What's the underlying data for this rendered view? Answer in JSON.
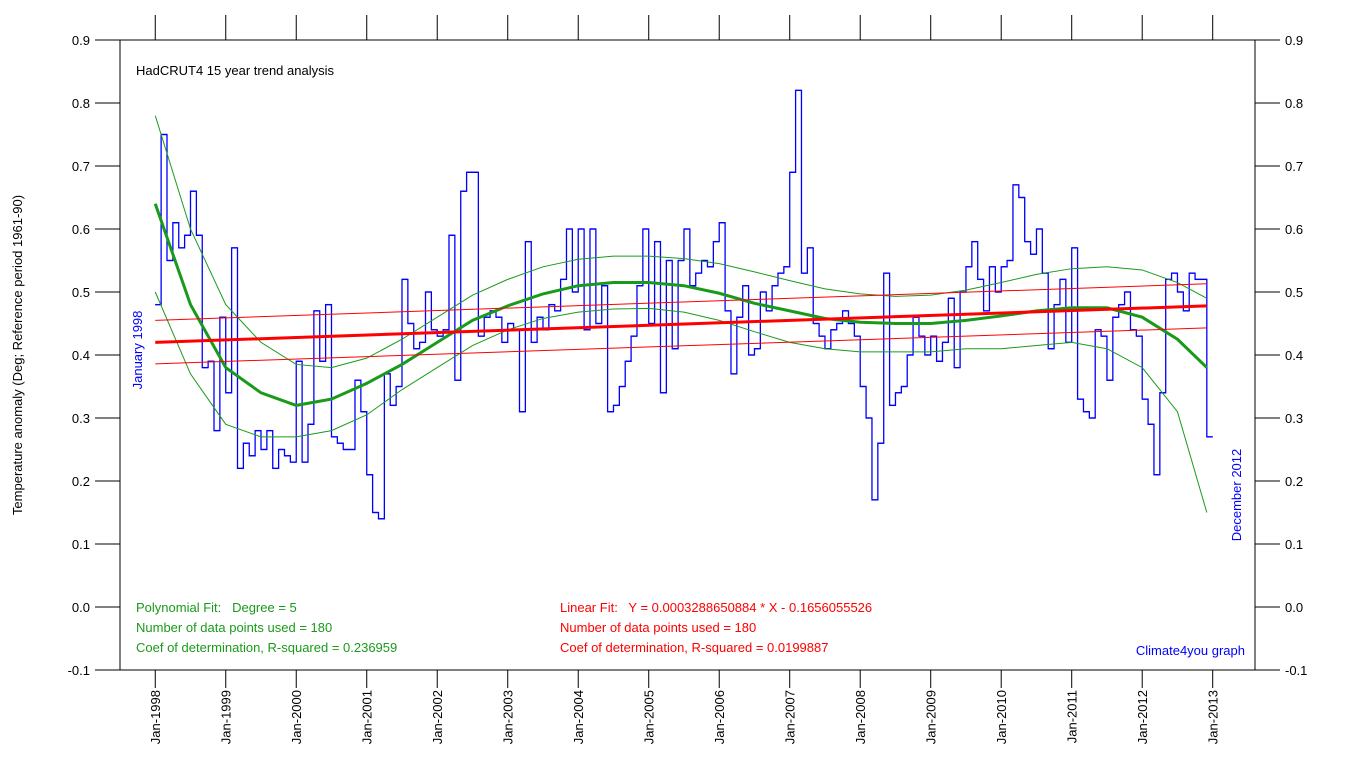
{
  "chart_data": {
    "type": "line",
    "title": "HadCRUT4 15 year trend analysis",
    "y_label": "Temperature anomaly (Deg; Reference period 1961-90)",
    "annotations": {
      "start": "January 1998",
      "end": "December 2012",
      "poly": [
        "Polynomial Fit:   Degree = 5",
        "Number of data points used = 180",
        "Coef of determination, R-squared = 0.236959"
      ],
      "linear": [
        "Linear Fit:   Y = 0.0003288650884 * X - 0.1656055526",
        "Number of data points used = 180",
        "Coef of determination, R-squared = 0.0199887"
      ],
      "credit": "Climate4you graph"
    },
    "xlim": [
      1997.5,
      2013.6
    ],
    "xticks": [
      {
        "value": 1998,
        "label": "Jan-1998"
      },
      {
        "value": 1999,
        "label": "Jan-1999"
      },
      {
        "value": 2000,
        "label": "Jan-2000"
      },
      {
        "value": 2001,
        "label": "Jan-2001"
      },
      {
        "value": 2002,
        "label": "Jan-2002"
      },
      {
        "value": 2003,
        "label": "Jan-2003"
      },
      {
        "value": 2004,
        "label": "Jan-2004"
      },
      {
        "value": 2005,
        "label": "Jan-2005"
      },
      {
        "value": 2006,
        "label": "Jan-2006"
      },
      {
        "value": 2007,
        "label": "Jan-2007"
      },
      {
        "value": 2008,
        "label": "Jan-2008"
      },
      {
        "value": 2009,
        "label": "Jan-2009"
      },
      {
        "value": 2010,
        "label": "Jan-2010"
      },
      {
        "value": 2011,
        "label": "Jan-2011"
      },
      {
        "value": 2012,
        "label": "Jan-2012"
      },
      {
        "value": 2013,
        "label": "Jan-2013"
      }
    ],
    "ylim": [
      -0.1,
      0.9
    ],
    "yticks": [
      -0.1,
      {
        "value": 0,
        "label": "0.0"
      },
      0.1,
      0.2,
      0.3,
      0.4,
      0.5,
      0.6,
      0.7,
      0.8,
      0.9
    ],
    "series": [
      {
        "color": "#0000ff",
        "style": "step",
        "width": 1.3,
        "x": [
          "1998-01",
          "1998-02",
          "1998-03",
          "1998-04",
          "1998-05",
          "1998-06",
          "1998-07",
          "1998-08",
          "1998-09",
          "1998-10",
          "1998-11",
          "1998-12",
          "1999-01",
          "1999-02",
          "1999-03",
          "1999-04",
          "1999-05",
          "1999-06",
          "1999-07",
          "1999-08",
          "1999-09",
          "1999-10",
          "1999-11",
          "1999-12",
          "2000-01",
          "2000-02",
          "2000-03",
          "2000-04",
          "2000-05",
          "2000-06",
          "2000-07",
          "2000-08",
          "2000-09",
          "2000-10",
          "2000-11",
          "2000-12",
          "2001-01",
          "2001-02",
          "2001-03",
          "2001-04",
          "2001-05",
          "2001-06",
          "2001-07",
          "2001-08",
          "2001-09",
          "2001-10",
          "2001-11",
          "2001-12",
          "2002-01",
          "2002-02",
          "2002-03",
          "2002-04",
          "2002-05",
          "2002-06",
          "2002-07",
          "2002-08",
          "2002-09",
          "2002-10",
          "2002-11",
          "2002-12",
          "2003-01",
          "2003-02",
          "2003-03",
          "2003-04",
          "2003-05",
          "2003-06",
          "2003-07",
          "2003-08",
          "2003-09",
          "2003-10",
          "2003-11",
          "2003-12",
          "2004-01",
          "2004-02",
          "2004-03",
          "2004-04",
          "2004-05",
          "2004-06",
          "2004-07",
          "2004-08",
          "2004-09",
          "2004-10",
          "2004-11",
          "2004-12",
          "2005-01",
          "2005-02",
          "2005-03",
          "2005-04",
          "2005-05",
          "2005-06",
          "2005-07",
          "2005-08",
          "2005-09",
          "2005-10",
          "2005-11",
          "2005-12",
          "2006-01",
          "2006-02",
          "2006-03",
          "2006-04",
          "2006-05",
          "2006-06",
          "2006-07",
          "2006-08",
          "2006-09",
          "2006-10",
          "2006-11",
          "2006-12",
          "2007-01",
          "2007-02",
          "2007-03",
          "2007-04",
          "2007-05",
          "2007-06",
          "2007-07",
          "2007-08",
          "2007-09",
          "2007-10",
          "2007-11",
          "2007-12",
          "2008-01",
          "2008-02",
          "2008-03",
          "2008-04",
          "2008-05",
          "2008-06",
          "2008-07",
          "2008-08",
          "2008-09",
          "2008-10",
          "2008-11",
          "2008-12",
          "2009-01",
          "2009-02",
          "2009-03",
          "2009-04",
          "2009-05",
          "2009-06",
          "2009-07",
          "2009-08",
          "2009-09",
          "2009-10",
          "2009-11",
          "2009-12",
          "2010-01",
          "2010-02",
          "2010-03",
          "2010-04",
          "2010-05",
          "2010-06",
          "2010-07",
          "2010-08",
          "2010-09",
          "2010-10",
          "2010-11",
          "2010-12",
          "2011-01",
          "2011-02",
          "2011-03",
          "2011-04",
          "2011-05",
          "2011-06",
          "2011-07",
          "2011-08",
          "2011-09",
          "2011-10",
          "2011-11",
          "2011-12",
          "2012-01",
          "2012-02",
          "2012-03",
          "2012-04",
          "2012-05",
          "2012-06",
          "2012-07",
          "2012-08",
          "2012-09",
          "2012-10",
          "2012-11",
          "2012-12"
        ],
        "values": [
          0.48,
          0.75,
          0.55,
          0.61,
          0.57,
          0.59,
          0.66,
          0.59,
          0.38,
          0.39,
          0.28,
          0.46,
          0.34,
          0.57,
          0.22,
          0.26,
          0.24,
          0.28,
          0.25,
          0.28,
          0.22,
          0.25,
          0.24,
          0.23,
          0.39,
          0.23,
          0.29,
          0.47,
          0.39,
          0.48,
          0.27,
          0.26,
          0.25,
          0.25,
          0.36,
          0.31,
          0.21,
          0.15,
          0.14,
          0.37,
          0.32,
          0.35,
          0.52,
          0.45,
          0.41,
          0.42,
          0.5,
          0.44,
          0.43,
          0.44,
          0.59,
          0.36,
          0.66,
          0.69,
          0.69,
          0.43,
          0.46,
          0.47,
          0.46,
          0.42,
          0.45,
          0.44,
          0.31,
          0.58,
          0.42,
          0.46,
          0.44,
          0.48,
          0.47,
          0.52,
          0.6,
          0.5,
          0.6,
          0.44,
          0.6,
          0.45,
          0.51,
          0.31,
          0.32,
          0.35,
          0.39,
          0.43,
          0.51,
          0.6,
          0.45,
          0.58,
          0.34,
          0.55,
          0.41,
          0.55,
          0.6,
          0.51,
          0.53,
          0.55,
          0.54,
          0.58,
          0.61,
          0.47,
          0.37,
          0.46,
          0.51,
          0.4,
          0.41,
          0.5,
          0.47,
          0.51,
          0.53,
          0.54,
          0.69,
          0.82,
          0.53,
          0.57,
          0.45,
          0.43,
          0.41,
          0.44,
          0.45,
          0.47,
          0.45,
          0.43,
          0.35,
          0.3,
          0.17,
          0.26,
          0.53,
          0.32,
          0.34,
          0.35,
          0.4,
          0.46,
          0.43,
          0.4,
          0.43,
          0.39,
          0.42,
          0.49,
          0.38,
          0.5,
          0.54,
          0.58,
          0.52,
          0.47,
          0.54,
          0.5,
          0.54,
          0.55,
          0.67,
          0.65,
          0.58,
          0.56,
          0.6,
          0.53,
          0.41,
          0.48,
          0.52,
          0.42,
          0.57,
          0.33,
          0.31,
          0.3,
          0.44,
          0.43,
          0.36,
          0.46,
          0.48,
          0.5,
          0.44,
          0.43,
          0.33,
          0.29,
          0.21,
          0.34,
          0.52,
          0.53,
          0.5,
          0.47,
          0.53,
          0.52,
          0.52,
          0.27
        ]
      },
      {
        "color": "#1a9a1a",
        "style": "line",
        "width": 3,
        "x": [
          "1998-01",
          "1998-07",
          "1999-01",
          "1999-07",
          "2000-01",
          "2000-07",
          "2001-01",
          "2001-07",
          "2002-01",
          "2002-07",
          "2003-01",
          "2003-07",
          "2004-01",
          "2004-07",
          "2005-01",
          "2005-07",
          "2006-01",
          "2006-07",
          "2007-01",
          "2007-07",
          "2008-01",
          "2008-07",
          "2009-01",
          "2009-07",
          "2010-01",
          "2010-07",
          "2011-01",
          "2011-07",
          "2012-01",
          "2012-07",
          "2012-12"
        ],
        "values": [
          0.64,
          0.48,
          0.38,
          0.34,
          0.32,
          0.33,
          0.355,
          0.385,
          0.42,
          0.455,
          0.478,
          0.497,
          0.51,
          0.515,
          0.515,
          0.51,
          0.498,
          0.482,
          0.47,
          0.458,
          0.452,
          0.45,
          0.45,
          0.455,
          0.462,
          0.47,
          0.475,
          0.475,
          0.46,
          0.425,
          0.38
        ]
      },
      {
        "color": "#1a9a1a",
        "style": "line",
        "width": 1,
        "x": [
          "1998-01",
          "1998-07",
          "1999-01",
          "1999-07",
          "2000-01",
          "2000-07",
          "2001-01",
          "2001-07",
          "2002-01",
          "2002-07",
          "2003-01",
          "2003-07",
          "2004-01",
          "2004-07",
          "2005-01",
          "2005-07",
          "2006-01",
          "2006-07",
          "2007-01",
          "2007-07",
          "2008-01",
          "2008-07",
          "2009-01",
          "2009-07",
          "2010-01",
          "2010-07",
          "2011-01",
          "2011-07",
          "2012-01",
          "2012-07",
          "2012-12"
        ],
        "values": [
          0.78,
          0.6,
          0.48,
          0.42,
          0.385,
          0.38,
          0.395,
          0.425,
          0.46,
          0.495,
          0.52,
          0.54,
          0.552,
          0.557,
          0.557,
          0.553,
          0.545,
          0.532,
          0.518,
          0.505,
          0.497,
          0.493,
          0.495,
          0.503,
          0.515,
          0.528,
          0.537,
          0.54,
          0.535,
          0.515,
          0.49
        ]
      },
      {
        "color": "#1a9a1a",
        "style": "line",
        "width": 1,
        "x": [
          "1998-01",
          "1998-07",
          "1999-01",
          "1999-07",
          "2000-01",
          "2000-07",
          "2001-01",
          "2001-07",
          "2002-01",
          "2002-07",
          "2003-01",
          "2003-07",
          "2004-01",
          "2004-07",
          "2005-01",
          "2005-07",
          "2006-01",
          "2006-07",
          "2007-01",
          "2007-07",
          "2008-01",
          "2008-07",
          "2009-01",
          "2009-07",
          "2010-01",
          "2010-07",
          "2011-01",
          "2011-07",
          "2012-01",
          "2012-07",
          "2012-12"
        ],
        "values": [
          0.5,
          0.37,
          0.29,
          0.27,
          0.27,
          0.28,
          0.305,
          0.345,
          0.38,
          0.415,
          0.44,
          0.458,
          0.468,
          0.473,
          0.474,
          0.468,
          0.455,
          0.437,
          0.42,
          0.41,
          0.405,
          0.405,
          0.405,
          0.41,
          0.41,
          0.415,
          0.42,
          0.41,
          0.38,
          0.31,
          0.15
        ]
      },
      {
        "color": "#ff0000",
        "style": "line",
        "width": 3,
        "x": [
          "1998-01",
          "2012-12"
        ],
        "values": [
          0.42,
          0.478
        ]
      },
      {
        "color": "#ff0000",
        "style": "line",
        "width": 1,
        "x": [
          "1998-01",
          "2012-12"
        ],
        "values": [
          0.455,
          0.513
        ]
      },
      {
        "color": "#ff0000",
        "style": "line",
        "width": 1,
        "x": [
          "1998-01",
          "2012-12"
        ],
        "values": [
          0.386,
          0.443
        ]
      }
    ]
  }
}
